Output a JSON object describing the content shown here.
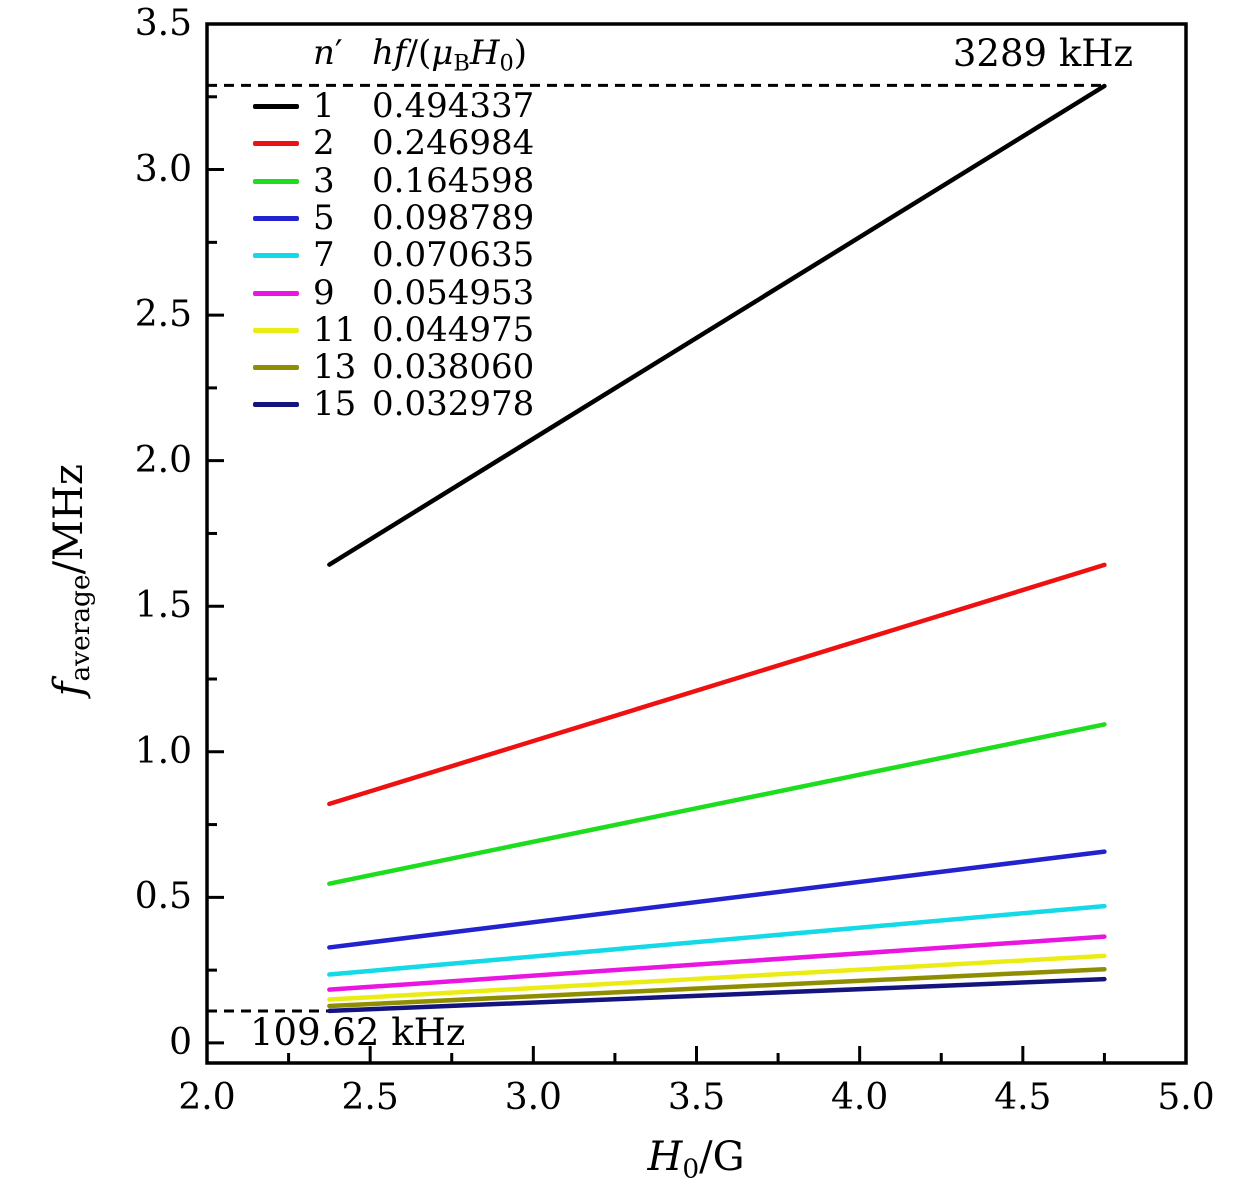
{
  "figure": {
    "background": "#ffffff",
    "frame_color": "#000000",
    "dash_color": "#000000"
  },
  "chart_data": {
    "type": "line",
    "title": "",
    "xlabel_text": "H0/G",
    "xlabel_parts": [
      {
        "t": "H",
        "i": 1
      },
      {
        "t": "0",
        "s": 1
      },
      {
        "t": "/G"
      }
    ],
    "ylabel_text": "f_average/MHz",
    "ylabel_parts": [
      {
        "t": "f",
        "i": 1
      },
      {
        "t": "average",
        "s": 1
      },
      {
        "t": "/MHz"
      }
    ],
    "xlim": [
      2.0,
      5.0
    ],
    "ylim": [
      -0.069,
      3.5
    ],
    "grid": false,
    "x_ticks": {
      "major": [
        2.0,
        2.5,
        3.0,
        3.5,
        4.0,
        4.5,
        5.0
      ],
      "labels": [
        "2.0",
        "2.5",
        "3.0",
        "3.5",
        "4.0",
        "4.5",
        "5.0"
      ],
      "minor": [
        2.25,
        2.75,
        3.25,
        3.75,
        4.25,
        4.75
      ]
    },
    "y_ticks": {
      "major": [
        0,
        0.5,
        1.0,
        1.5,
        2.0,
        2.5,
        3.0,
        3.5
      ],
      "labels": [
        "0",
        "0.5",
        "1.0",
        "1.5",
        "2.0",
        "2.5",
        "3.0",
        "3.5"
      ],
      "minor": [
        0.25,
        0.75,
        1.25,
        1.75,
        2.25,
        2.75,
        3.25
      ]
    },
    "x_data_range": [
      2.375,
      4.75
    ],
    "legend": {
      "position": "top-left",
      "col1_header_text": "n′",
      "col1_header_parts": [
        {
          "t": "n",
          "i": 1
        },
        {
          "t": "′"
        }
      ],
      "col2_header_text": "hf/(μB H0)",
      "col2_header_parts": [
        {
          "t": "hf",
          "i": 1
        },
        {
          "t": "/("
        },
        {
          "t": "μ",
          "i": 1
        },
        {
          "t": "B",
          "s": 1
        },
        {
          "t": "H",
          "i": 1
        },
        {
          "t": "0",
          "s": 1
        },
        {
          "t": ")"
        }
      ]
    },
    "series": [
      {
        "n_prime": 1,
        "label_n": "1",
        "ratio": 0.494337,
        "ratio_label": "0.494337",
        "color": "#000000",
        "x": [
          2.375,
          4.75
        ],
        "y": [
          1.643,
          3.287
        ]
      },
      {
        "n_prime": 2,
        "label_n": "2",
        "ratio": 0.246984,
        "ratio_label": "0.246984",
        "color": "#ee1111",
        "x": [
          2.375,
          4.75
        ],
        "y": [
          0.821,
          1.642
        ]
      },
      {
        "n_prime": 3,
        "label_n": "3",
        "ratio": 0.164598,
        "ratio_label": "0.164598",
        "color": "#1edc1e",
        "x": [
          2.375,
          4.75
        ],
        "y": [
          0.547,
          1.094
        ]
      },
      {
        "n_prime": 5,
        "label_n": "5",
        "ratio": 0.098789,
        "ratio_label": "0.098789",
        "color": "#2222cf",
        "x": [
          2.375,
          4.75
        ],
        "y": [
          0.328,
          0.657
        ]
      },
      {
        "n_prime": 7,
        "label_n": "7",
        "ratio": 0.070635,
        "ratio_label": "0.070635",
        "color": "#14d9e6",
        "x": [
          2.375,
          4.75
        ],
        "y": [
          0.235,
          0.47
        ]
      },
      {
        "n_prime": 9,
        "label_n": "9",
        "ratio": 0.054953,
        "ratio_label": "0.054953",
        "color": "#e816e0",
        "x": [
          2.375,
          4.75
        ],
        "y": [
          0.183,
          0.365
        ]
      },
      {
        "n_prime": 11,
        "label_n": "11",
        "ratio": 0.044975,
        "ratio_label": "0.044975",
        "color": "#ecec15",
        "x": [
          2.375,
          4.75
        ],
        "y": [
          0.149,
          0.299
        ]
      },
      {
        "n_prime": 13,
        "label_n": "13",
        "ratio": 0.03806,
        "ratio_label": "0.038060",
        "color": "#8e8e00",
        "x": [
          2.375,
          4.75
        ],
        "y": [
          0.127,
          0.253
        ]
      },
      {
        "n_prime": 15,
        "label_n": "15",
        "ratio": 0.032978,
        "ratio_label": "0.032978",
        "color": "#14147e",
        "x": [
          2.375,
          4.75
        ],
        "y": [
          0.11,
          0.219
        ]
      }
    ],
    "annotations": [
      {
        "text": "3289 kHz",
        "value_mhz": 3.289,
        "dash_x": [
          2.0,
          4.755
        ],
        "label_pos": "top-right"
      },
      {
        "text": "109.62 kHz",
        "value_mhz": 0.10962,
        "dash_x": [
          2.0,
          2.41
        ],
        "label_pos": "bottom-left"
      }
    ]
  }
}
